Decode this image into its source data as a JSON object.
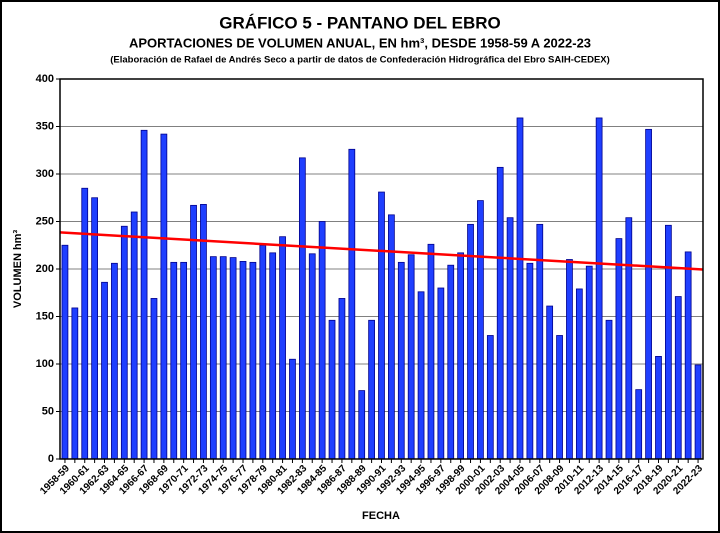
{
  "chart_data": {
    "type": "bar",
    "title": "GRÁFICO 5 - PANTANO DEL EBRO",
    "subtitle": "APORTACIONES DE VOLUMEN ANUAL, EN hm³, DESDE 1958-59 A 2022-23",
    "note": "(Elaboración de Rafael de Andrés Seco a partir de datos de Confederación Hidrográfica del Ebro SAIH-CEDEX)",
    "ylabel": "VOLUMEN hm³",
    "xlabel": "FECHA",
    "categories": [
      "1958-59",
      null,
      "1960-61",
      null,
      "1962-63",
      null,
      "1964-65",
      null,
      "1966-67",
      null,
      "1968-69",
      null,
      "1970-71",
      null,
      "1972-73",
      null,
      "1974-75",
      null,
      "1976-77",
      null,
      "1978-79",
      null,
      "1980-81",
      null,
      "1982-83",
      null,
      "1984-85",
      null,
      "1986-87",
      null,
      "1988-89",
      null,
      "1990-91",
      null,
      "1992-93",
      null,
      "1994-95",
      null,
      "1996-97",
      null,
      "1998-99",
      null,
      "2000-01",
      null,
      "2002-03",
      null,
      "2004-05",
      null,
      "2006-07",
      null,
      "2008-09",
      null,
      "2010-11",
      null,
      "2012-13",
      null,
      "2014-15",
      null,
      "2016-17",
      null,
      "2018-19",
      null,
      "2020-21",
      null,
      "2022-23"
    ],
    "values": [
      225,
      159,
      285,
      275,
      186,
      206,
      245,
      260,
      346,
      169,
      342,
      207,
      207,
      267,
      268,
      213,
      213,
      212,
      208,
      207,
      225,
      217,
      234,
      105,
      317,
      216,
      250,
      146,
      169,
      326,
      72,
      146,
      281,
      257,
      207,
      215,
      176,
      226,
      180,
      204,
      217,
      247,
      272,
      130,
      307,
      254,
      359,
      206,
      247,
      161,
      130,
      210,
      179,
      203,
      359,
      146,
      232,
      254,
      73,
      347,
      108,
      246,
      171,
      218,
      99
    ],
    "color": "#1f3fff",
    "trend": {
      "color": "#ff0000",
      "values": [
        238.5,
        199.5
      ]
    },
    "ylim": [
      0,
      400
    ],
    "yticks": [
      0,
      50,
      100,
      150,
      200,
      250,
      300,
      350,
      400
    ],
    "grid": true
  }
}
